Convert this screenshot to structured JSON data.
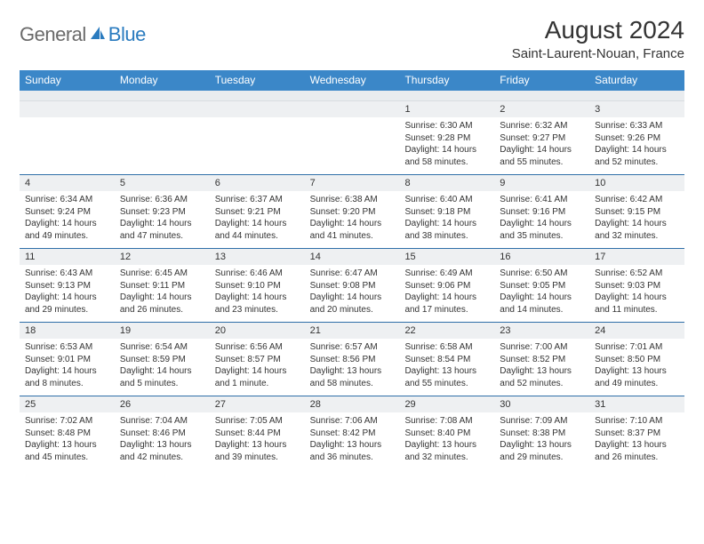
{
  "brand": {
    "general": "General",
    "blue": "Blue"
  },
  "title": "August 2024",
  "location": "Saint-Laurent-Nouan, France",
  "colors": {
    "header_bg": "#3b87c8",
    "daynum_bg": "#eef0f2",
    "week_divider": "#2f6fa8",
    "text": "#333333",
    "logo_gray": "#6a6a6a",
    "logo_blue": "#2a7bbf"
  },
  "day_names": [
    "Sunday",
    "Monday",
    "Tuesday",
    "Wednesday",
    "Thursday",
    "Friday",
    "Saturday"
  ],
  "weeks": [
    [
      null,
      null,
      null,
      null,
      {
        "n": "1",
        "sr": "6:30 AM",
        "ss": "9:28 PM",
        "dl": "14 hours and 58 minutes."
      },
      {
        "n": "2",
        "sr": "6:32 AM",
        "ss": "9:27 PM",
        "dl": "14 hours and 55 minutes."
      },
      {
        "n": "3",
        "sr": "6:33 AM",
        "ss": "9:26 PM",
        "dl": "14 hours and 52 minutes."
      }
    ],
    [
      {
        "n": "4",
        "sr": "6:34 AM",
        "ss": "9:24 PM",
        "dl": "14 hours and 49 minutes."
      },
      {
        "n": "5",
        "sr": "6:36 AM",
        "ss": "9:23 PM",
        "dl": "14 hours and 47 minutes."
      },
      {
        "n": "6",
        "sr": "6:37 AM",
        "ss": "9:21 PM",
        "dl": "14 hours and 44 minutes."
      },
      {
        "n": "7",
        "sr": "6:38 AM",
        "ss": "9:20 PM",
        "dl": "14 hours and 41 minutes."
      },
      {
        "n": "8",
        "sr": "6:40 AM",
        "ss": "9:18 PM",
        "dl": "14 hours and 38 minutes."
      },
      {
        "n": "9",
        "sr": "6:41 AM",
        "ss": "9:16 PM",
        "dl": "14 hours and 35 minutes."
      },
      {
        "n": "10",
        "sr": "6:42 AM",
        "ss": "9:15 PM",
        "dl": "14 hours and 32 minutes."
      }
    ],
    [
      {
        "n": "11",
        "sr": "6:43 AM",
        "ss": "9:13 PM",
        "dl": "14 hours and 29 minutes."
      },
      {
        "n": "12",
        "sr": "6:45 AM",
        "ss": "9:11 PM",
        "dl": "14 hours and 26 minutes."
      },
      {
        "n": "13",
        "sr": "6:46 AM",
        "ss": "9:10 PM",
        "dl": "14 hours and 23 minutes."
      },
      {
        "n": "14",
        "sr": "6:47 AM",
        "ss": "9:08 PM",
        "dl": "14 hours and 20 minutes."
      },
      {
        "n": "15",
        "sr": "6:49 AM",
        "ss": "9:06 PM",
        "dl": "14 hours and 17 minutes."
      },
      {
        "n": "16",
        "sr": "6:50 AM",
        "ss": "9:05 PM",
        "dl": "14 hours and 14 minutes."
      },
      {
        "n": "17",
        "sr": "6:52 AM",
        "ss": "9:03 PM",
        "dl": "14 hours and 11 minutes."
      }
    ],
    [
      {
        "n": "18",
        "sr": "6:53 AM",
        "ss": "9:01 PM",
        "dl": "14 hours and 8 minutes."
      },
      {
        "n": "19",
        "sr": "6:54 AM",
        "ss": "8:59 PM",
        "dl": "14 hours and 5 minutes."
      },
      {
        "n": "20",
        "sr": "6:56 AM",
        "ss": "8:57 PM",
        "dl": "14 hours and 1 minute."
      },
      {
        "n": "21",
        "sr": "6:57 AM",
        "ss": "8:56 PM",
        "dl": "13 hours and 58 minutes."
      },
      {
        "n": "22",
        "sr": "6:58 AM",
        "ss": "8:54 PM",
        "dl": "13 hours and 55 minutes."
      },
      {
        "n": "23",
        "sr": "7:00 AM",
        "ss": "8:52 PM",
        "dl": "13 hours and 52 minutes."
      },
      {
        "n": "24",
        "sr": "7:01 AM",
        "ss": "8:50 PM",
        "dl": "13 hours and 49 minutes."
      }
    ],
    [
      {
        "n": "25",
        "sr": "7:02 AM",
        "ss": "8:48 PM",
        "dl": "13 hours and 45 minutes."
      },
      {
        "n": "26",
        "sr": "7:04 AM",
        "ss": "8:46 PM",
        "dl": "13 hours and 42 minutes."
      },
      {
        "n": "27",
        "sr": "7:05 AM",
        "ss": "8:44 PM",
        "dl": "13 hours and 39 minutes."
      },
      {
        "n": "28",
        "sr": "7:06 AM",
        "ss": "8:42 PM",
        "dl": "13 hours and 36 minutes."
      },
      {
        "n": "29",
        "sr": "7:08 AM",
        "ss": "8:40 PM",
        "dl": "13 hours and 32 minutes."
      },
      {
        "n": "30",
        "sr": "7:09 AM",
        "ss": "8:38 PM",
        "dl": "13 hours and 29 minutes."
      },
      {
        "n": "31",
        "sr": "7:10 AM",
        "ss": "8:37 PM",
        "dl": "13 hours and 26 minutes."
      }
    ]
  ],
  "labels": {
    "sunrise": "Sunrise: ",
    "sunset": "Sunset: ",
    "daylight": "Daylight: "
  }
}
